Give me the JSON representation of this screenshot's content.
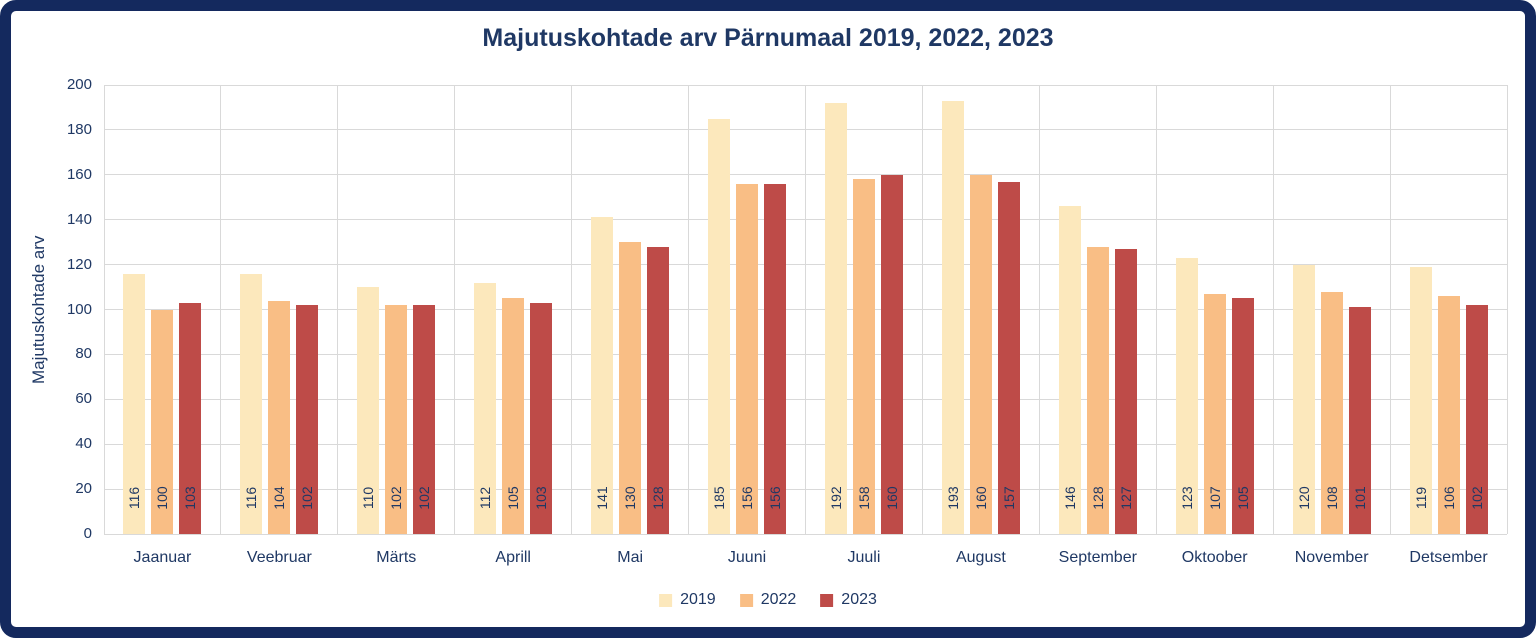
{
  "chart": {
    "title": "Majutuskohtade arv Pärnumaal 2019, 2022, 2023"
  },
  "chart_data": {
    "type": "bar",
    "title": "Majutuskohtade arv Pärnumaal 2019, 2022, 2023",
    "categories": [
      "Jaanuar",
      "Veebruar",
      "Märts",
      "Aprill",
      "Mai",
      "Juuni",
      "Juuli",
      "August",
      "September",
      "Oktoober",
      "November",
      "Detsember"
    ],
    "series": [
      {
        "name": "2019",
        "color": "#FCE8BC",
        "values": [
          116,
          116,
          110,
          112,
          141,
          185,
          192,
          193,
          146,
          123,
          120,
          119
        ]
      },
      {
        "name": "2022",
        "color": "#F9BE85",
        "values": [
          100,
          104,
          102,
          105,
          130,
          156,
          158,
          160,
          128,
          107,
          108,
          106
        ]
      },
      {
        "name": "2023",
        "color": "#BE4B48",
        "values": [
          103,
          102,
          102,
          103,
          128,
          156,
          160,
          157,
          127,
          105,
          101,
          102
        ]
      }
    ],
    "xlabel": "",
    "ylabel": "Majutuskohtade arv",
    "ylim": [
      0,
      200
    ],
    "ytick_step": 20,
    "grid": true,
    "legend_position": "bottom",
    "bar_label_position": "inside-base",
    "bar_label_rotation": 90
  },
  "colors": {
    "frame": "#14295E",
    "text": "#1F3864",
    "gridline": "#D9D9D9",
    "background": "#FFFFFF"
  }
}
